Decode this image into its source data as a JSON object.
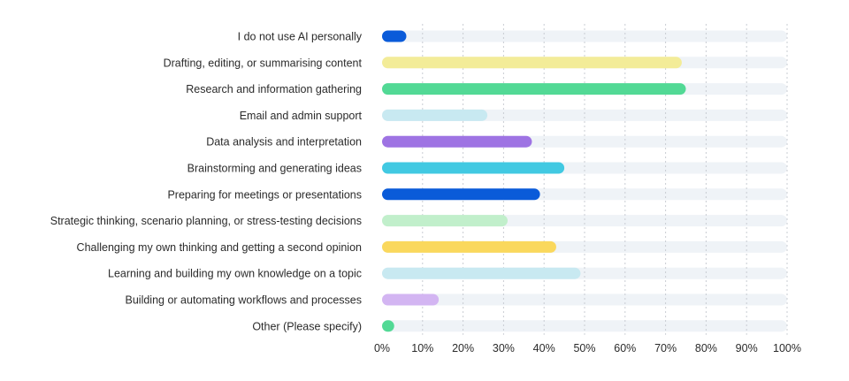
{
  "chart_data": {
    "type": "bar",
    "orientation": "horizontal",
    "categories": [
      "I do not use AI personally",
      "Drafting, editing, or summarising content",
      "Research and information gathering",
      "Email and admin support",
      "Data analysis and interpretation",
      "Brainstorming and generating ideas",
      "Preparing for meetings or presentations",
      "Strategic thinking, scenario planning, or stress-testing decisions",
      "Challenging my own thinking and getting a second opinion",
      "Learning and building my own knowledge on a topic",
      "Building or automating workflows and processes",
      "Other (Please specify)"
    ],
    "values": [
      6,
      74,
      75,
      26,
      37,
      45,
      39,
      31,
      43,
      49,
      14,
      3
    ],
    "colors": [
      "#0a5bd9",
      "#f3ec98",
      "#52d995",
      "#c8e9f1",
      "#9e73e3",
      "#41c9e2",
      "#0a5bd9",
      "#c1efcb",
      "#fad85d",
      "#c8e9f1",
      "#d3b5f2",
      "#52d995"
    ],
    "track_color": "#eff3f7",
    "xlim": [
      0,
      100
    ],
    "x_ticks": [
      0,
      10,
      20,
      30,
      40,
      50,
      60,
      70,
      80,
      90,
      100
    ],
    "x_tick_labels": [
      "0%",
      "10%",
      "20%",
      "30%",
      "40%",
      "50%",
      "60%",
      "70%",
      "80%",
      "90%",
      "100%"
    ],
    "grid": true,
    "legend": "none",
    "title": "",
    "xlabel": "",
    "ylabel": ""
  }
}
